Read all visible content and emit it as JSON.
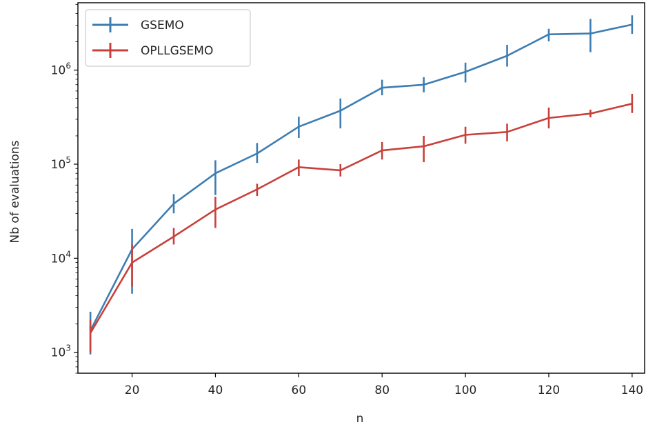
{
  "chart_data": {
    "type": "line",
    "xlabel": "n",
    "ylabel": "Nb of evaluations",
    "yscale": "log",
    "xlim": [
      7,
      143
    ],
    "ylim": [
      600,
      5200000
    ],
    "x_ticks": [
      20,
      40,
      60,
      80,
      100,
      120,
      140
    ],
    "x_tick_labels": [
      "20",
      "40",
      "60",
      "80",
      "100",
      "120",
      "140"
    ],
    "y_ticks": [
      1000,
      10000,
      100000,
      1000000
    ],
    "y_tick_labels": [
      {
        "base": "10",
        "exp": "3"
      },
      {
        "base": "10",
        "exp": "4"
      },
      {
        "base": "10",
        "exp": "5"
      },
      {
        "base": "10",
        "exp": "6"
      }
    ],
    "grid": false,
    "legend_position": "upper-left",
    "x": [
      10,
      20,
      30,
      40,
      50,
      60,
      70,
      80,
      90,
      100,
      110,
      120,
      130,
      140
    ],
    "series": [
      {
        "name": "GSEMO",
        "color": "#3d7db2",
        "values": [
          1700,
          12500,
          38000,
          80000,
          130000,
          250000,
          370000,
          650000,
          700000,
          960000,
          1420000,
          2400000,
          2450000,
          3050000
        ],
        "err_low": [
          950,
          4200,
          30000,
          47000,
          103000,
          190000,
          240000,
          540000,
          580000,
          740000,
          1090000,
          2020000,
          1550000,
          2430000
        ],
        "err_high": [
          2700,
          20500,
          48000,
          110000,
          168000,
          320000,
          500000,
          790000,
          840000,
          1200000,
          1860000,
          2750000,
          3500000,
          3820000
        ]
      },
      {
        "name": "OPLLGSEMO",
        "color": "#c8403b",
        "values": [
          1600,
          9000,
          17000,
          33000,
          54000,
          93000,
          86000,
          140000,
          155000,
          205000,
          220000,
          310000,
          345000,
          440000
        ],
        "err_low": [
          1000,
          5000,
          14000,
          21000,
          46000,
          75000,
          74000,
          112000,
          105000,
          165000,
          175000,
          240000,
          315000,
          350000
        ],
        "err_high": [
          2200,
          14000,
          21000,
          45000,
          62000,
          112000,
          100000,
          172000,
          200000,
          250000,
          270000,
          400000,
          380000,
          560000
        ]
      }
    ]
  }
}
